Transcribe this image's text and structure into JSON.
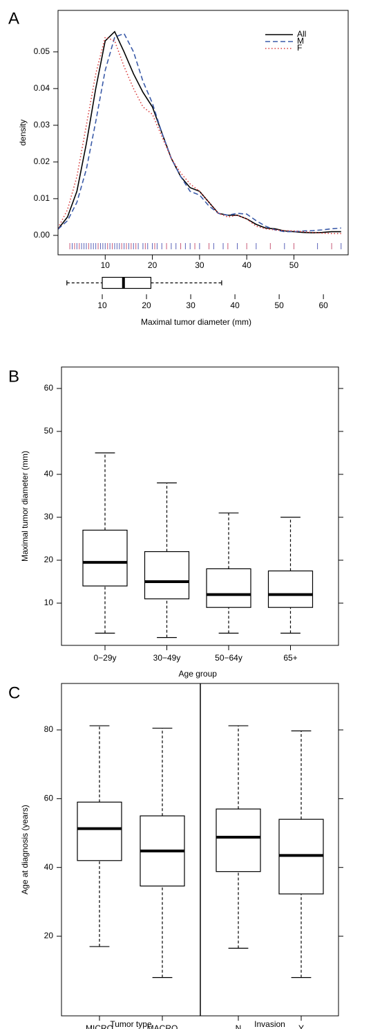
{
  "chart_data": [
    {
      "type": "line",
      "panel": "A",
      "ylabel": "density",
      "x": [
        0,
        2,
        4,
        6,
        8,
        10,
        12,
        14,
        16,
        18,
        20,
        22,
        24,
        26,
        28,
        30,
        32,
        34,
        36,
        38,
        40,
        42,
        44,
        46,
        48,
        50,
        52,
        54,
        56,
        58,
        60
      ],
      "series": [
        {
          "name": "All",
          "color": "#000000",
          "dash": "solid",
          "values": [
            0.0017,
            0.005,
            0.012,
            0.025,
            0.04,
            0.053,
            0.0555,
            0.05,
            0.044,
            0.039,
            0.035,
            0.028,
            0.021,
            0.016,
            0.013,
            0.012,
            0.009,
            0.006,
            0.0055,
            0.0055,
            0.0045,
            0.003,
            0.002,
            0.0018,
            0.0012,
            0.001,
            0.0008,
            0.0007,
            0.0008,
            0.001,
            0.001
          ]
        },
        {
          "name": "M",
          "color": "#3a5aa8",
          "dash": "dashed",
          "values": [
            0.0017,
            0.004,
            0.009,
            0.018,
            0.031,
            0.045,
            0.054,
            0.055,
            0.05,
            0.042,
            0.036,
            0.028,
            0.021,
            0.016,
            0.012,
            0.011,
            0.008,
            0.006,
            0.0055,
            0.006,
            0.0058,
            0.004,
            0.0025,
            0.0015,
            0.001,
            0.001,
            0.0012,
            0.0013,
            0.0015,
            0.0018,
            0.002
          ]
        },
        {
          "name": "F",
          "color": "#d93a3a",
          "dash": "dotted",
          "values": [
            0.002,
            0.007,
            0.016,
            0.03,
            0.044,
            0.054,
            0.053,
            0.046,
            0.04,
            0.035,
            0.033,
            0.027,
            0.021,
            0.017,
            0.014,
            0.012,
            0.009,
            0.006,
            0.005,
            0.0055,
            0.0045,
            0.0025,
            0.0018,
            0.0015,
            0.0013,
            0.0012,
            0.001,
            0.0008,
            0.0006,
            0.0005,
            0.0005
          ]
        }
      ],
      "rug": [
        {
          "color": "#5a62b8",
          "x": [
            3,
            4,
            5,
            5.5,
            6,
            7,
            7.5,
            8,
            9,
            9.5,
            10,
            11,
            12,
            12.5,
            13,
            14,
            15,
            16,
            17,
            18,
            19,
            20,
            21,
            22,
            24,
            25,
            27,
            28,
            30,
            33,
            35,
            38,
            42,
            48,
            55,
            60
          ]
        },
        {
          "color": "#c85a78",
          "x": [
            2.5,
            3.5,
            4.5,
            6.5,
            8.5,
            10.5,
            11.5,
            13.5,
            14.5,
            15.5,
            16.5,
            18.5,
            20.5,
            23,
            26,
            29,
            32,
            36,
            40,
            45,
            50,
            58
          ]
        }
      ],
      "xlim": [
        0,
        61.5
      ],
      "xticks": [
        10,
        20,
        30,
        40,
        50
      ],
      "ylim": [
        -0.0053,
        0.0613
      ],
      "yticks": [
        {
          "value": 0,
          "label": "0.00"
        },
        0.01,
        0.02,
        0.03,
        0.04,
        0.05
      ],
      "legend": "top-right"
    },
    {
      "type": "boxplot",
      "orientation": "horizontal",
      "xlabel": "Maximal tumor diameter (mm)",
      "stats": [
        [
          2,
          10,
          14.8,
          21,
          37
        ]
      ],
      "xlim": [
        0,
        65.6
      ],
      "xticks": [
        10,
        20,
        30,
        40,
        50,
        60
      ]
    },
    {
      "type": "boxplot",
      "orientation": "vertical",
      "panel": "B",
      "xlabel": "Age group",
      "ylabel": "Maximal tumor diameter (mm)",
      "categories": [
        "0−29y",
        "30−49y",
        "50−64y",
        "65+"
      ],
      "stats": [
        [
          3,
          14,
          19.5,
          27,
          45
        ],
        [
          2,
          11,
          15,
          22,
          38
        ],
        [
          3,
          9,
          12,
          18,
          31
        ],
        [
          3,
          9,
          12,
          17.5,
          30
        ]
      ],
      "ylim": [
        0.16,
        65
      ],
      "yticks": [
        10,
        20,
        30,
        40,
        50,
        60
      ]
    },
    {
      "type": "boxplot",
      "orientation": "vertical",
      "panel": "C",
      "ylabel": "Age at diagnosis (years)",
      "categories": [
        "MICRO",
        "MACRO",
        "N",
        "Y"
      ],
      "group_labels": [
        "Tumor type",
        "Invasion"
      ],
      "stats": [
        [
          17,
          42,
          51.3,
          59,
          81.2
        ],
        [
          8,
          34.6,
          44.8,
          55,
          80.5
        ],
        [
          16.5,
          38.8,
          48.8,
          57,
          81.2
        ],
        [
          8,
          32.3,
          43.5,
          54,
          79.7
        ]
      ],
      "ylim": [
        -3.15,
        93.5
      ],
      "yticks": [
        20,
        40,
        60,
        80
      ]
    }
  ]
}
